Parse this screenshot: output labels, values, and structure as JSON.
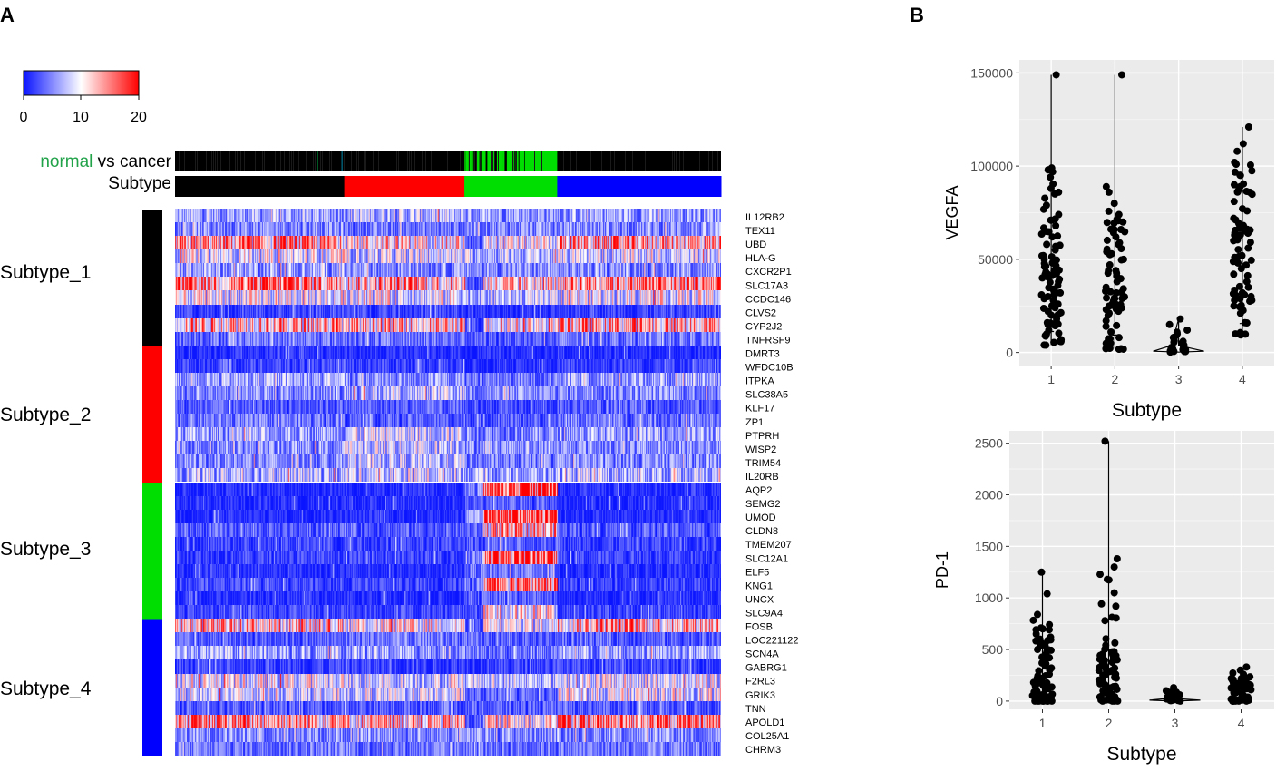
{
  "panels": {
    "a_label": "A",
    "b_label": "B"
  },
  "colorbar": {
    "ticks": [
      "0",
      "10",
      "20"
    ],
    "colors": {
      "low": "#0a14ff",
      "mid": "#ffffff",
      "high": "#ff0000"
    }
  },
  "annotation": {
    "normal_word": "normal",
    "rest": " vs cancer",
    "subtype_label": "Subtype",
    "normal_color": "#22a34a"
  },
  "subtypes": {
    "labels": [
      "Subtype_1",
      "Subtype_2",
      "Subtype_3",
      "Subtype_4"
    ],
    "colors": [
      "#000000",
      "#ff0000",
      "#00dd00",
      "#0000ff"
    ]
  },
  "chart_data": [
    {
      "type": "heatmap",
      "title": "",
      "color_scale": {
        "min": 0,
        "max": 20,
        "ticks": [
          0,
          10,
          20
        ]
      },
      "sample_groups": [
        {
          "subtype": "1",
          "fraction": 0.31
        },
        {
          "subtype": "2",
          "fraction": 0.22
        },
        {
          "subtype": "3",
          "fraction": 0.17
        },
        {
          "subtype": "4",
          "fraction": 0.3
        }
      ],
      "genes": [
        "IL12RB2",
        "TEX11",
        "UBD",
        "HLA-G",
        "CXCR2P1",
        "SLC17A3",
        "CCDC146",
        "CLVS2",
        "CYP2J2",
        "TNFRSF9",
        "DMRT3",
        "WFDC10B",
        "ITPKA",
        "SLC38A5",
        "KLF17",
        "ZP1",
        "PTPRH",
        "WISP2",
        "TRIM54",
        "IL20RB",
        "AQP2",
        "SEMG2",
        "UMOD",
        "CLDN8",
        "TMEM207",
        "SLC12A1",
        "ELF5",
        "KNG1",
        "UNCX",
        "SLC9A4",
        "FOSB",
        "LOC221122",
        "SCN4A",
        "GABRG1",
        "F2RL3",
        "GRIK3",
        "TNN",
        "APOLD1",
        "COL25A1",
        "CHRM3"
      ],
      "gene_group_subtype": [
        1,
        1,
        1,
        1,
        1,
        1,
        1,
        1,
        1,
        1,
        2,
        2,
        2,
        2,
        2,
        2,
        2,
        2,
        2,
        2,
        3,
        3,
        3,
        3,
        3,
        3,
        3,
        3,
        3,
        3,
        4,
        4,
        4,
        4,
        4,
        4,
        4,
        4,
        4,
        4
      ],
      "mean_expression_by_sample_group": [
        [
          6,
          7,
          6,
          6
        ],
        [
          5,
          4,
          5,
          5
        ],
        [
          13,
          11,
          9,
          13
        ],
        [
          9,
          8,
          7,
          8
        ],
        [
          6,
          5,
          5,
          5
        ],
        [
          15,
          13,
          11,
          15
        ],
        [
          9,
          9,
          7,
          9
        ],
        [
          2,
          2,
          1,
          2
        ],
        [
          13,
          12,
          10,
          13
        ],
        [
          4,
          4,
          3,
          4
        ],
        [
          1,
          1,
          1,
          1
        ],
        [
          2,
          2,
          1,
          2
        ],
        [
          6,
          5,
          4,
          6
        ],
        [
          5,
          7,
          5,
          5
        ],
        [
          3,
          3,
          2,
          3
        ],
        [
          4,
          3,
          3,
          4
        ],
        [
          6,
          8,
          5,
          6
        ],
        [
          5,
          8,
          5,
          5
        ],
        [
          5,
          7,
          4,
          5
        ],
        [
          7,
          8,
          6,
          7
        ],
        [
          1,
          1,
          18,
          1
        ],
        [
          1,
          1,
          3,
          1
        ],
        [
          1,
          1,
          20,
          1
        ],
        [
          3,
          3,
          12,
          3
        ],
        [
          2,
          2,
          3,
          2
        ],
        [
          2,
          2,
          18,
          2
        ],
        [
          1,
          1,
          4,
          1
        ],
        [
          2,
          2,
          16,
          2
        ],
        [
          1,
          1,
          3,
          1
        ],
        [
          2,
          2,
          10,
          2
        ],
        [
          12,
          10,
          9,
          13
        ],
        [
          3,
          4,
          3,
          3
        ],
        [
          6,
          6,
          4,
          6
        ],
        [
          2,
          2,
          2,
          2
        ],
        [
          9,
          8,
          7,
          9
        ],
        [
          8,
          8,
          3,
          9
        ],
        [
          3,
          3,
          3,
          3
        ],
        [
          14,
          12,
          10,
          15
        ],
        [
          5,
          5,
          5,
          5
        ],
        [
          4,
          4,
          4,
          4
        ]
      ]
    },
    {
      "type": "scatter",
      "title": "",
      "xlabel": "Subtype",
      "ylabel": "VEGFA",
      "categories": [
        "1",
        "2",
        "3",
        "4"
      ],
      "ylim": [
        -7000,
        157000
      ],
      "yticks": [
        0,
        50000,
        100000,
        150000
      ],
      "ytick_labels": [
        "0",
        "50000",
        "100000",
        "150000"
      ],
      "series": [
        {
          "name": "1",
          "values": [
            149000,
            99000,
            98000,
            97000,
            88000,
            86000,
            79000,
            74000,
            71000,
            68000,
            65000,
            62000,
            58000,
            55000,
            52000,
            50000,
            48000,
            46000,
            44000,
            42000,
            40000,
            38000,
            36000,
            34000,
            32000,
            30000,
            28000,
            26000,
            24000,
            22000,
            20000,
            18000,
            15000,
            12000,
            9000,
            6000,
            4000
          ]
        },
        {
          "name": "2",
          "values": [
            149000,
            89000,
            86000,
            80000,
            74000,
            70000,
            66000,
            62000,
            58000,
            54000,
            50000,
            47000,
            44000,
            41000,
            38000,
            35000,
            32000,
            29000,
            26000,
            23000,
            20000,
            17000,
            14000,
            11000,
            8000,
            5000,
            2000
          ]
        },
        {
          "name": "3",
          "values": [
            18000,
            15000,
            12000,
            10000,
            8000,
            6000,
            5000,
            4000,
            3000,
            2000,
            1500,
            1000,
            500,
            200
          ]
        },
        {
          "name": "4",
          "values": [
            121000,
            112000,
            108000,
            101000,
            95000,
            90000,
            86000,
            81000,
            76000,
            72000,
            68000,
            64000,
            60000,
            56000,
            52000,
            48000,
            45000,
            42000,
            38000,
            35000,
            32000,
            28000,
            25000,
            21000,
            16000,
            10000
          ]
        }
      ]
    },
    {
      "type": "scatter",
      "title": "",
      "xlabel": "Subtype",
      "ylabel": "PD-1",
      "categories": [
        "1",
        "2",
        "3",
        "4"
      ],
      "ylim": [
        -80,
        2620
      ],
      "yticks": [
        0,
        500,
        1000,
        1500,
        2000,
        2500
      ],
      "ytick_labels": [
        "0",
        "500",
        "1000",
        "1500",
        "2000",
        "2500"
      ],
      "series": [
        {
          "name": "1",
          "values": [
            1250,
            1040,
            840,
            740,
            700,
            650,
            600,
            540,
            500,
            460,
            420,
            380,
            340,
            300,
            260,
            220,
            180,
            150,
            120,
            90,
            60,
            40,
            20,
            10,
            5,
            0
          ]
        },
        {
          "name": "2",
          "values": [
            2520,
            1380,
            1300,
            1180,
            920,
            780,
            540,
            480,
            440,
            400,
            360,
            300,
            260,
            220,
            180,
            140,
            100,
            70,
            40,
            20,
            10,
            0
          ]
        },
        {
          "name": "3",
          "values": [
            130,
            100,
            80,
            60,
            40,
            30,
            20,
            10,
            5,
            0
          ]
        },
        {
          "name": "4",
          "values": [
            330,
            300,
            260,
            220,
            200,
            180,
            160,
            140,
            120,
            100,
            80,
            60,
            40,
            20,
            10,
            0
          ]
        }
      ]
    }
  ]
}
